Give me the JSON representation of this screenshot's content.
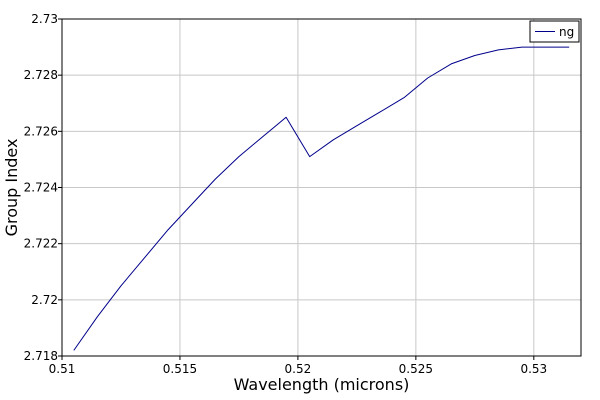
{
  "chart_data": {
    "type": "line",
    "title": "",
    "xlabel": "Wavelength (microns)",
    "ylabel": "Group Index",
    "xlim": [
      0.51,
      0.532
    ],
    "ylim": [
      2.718,
      2.73
    ],
    "xticks": [
      0.51,
      0.515,
      0.52,
      0.525,
      0.53
    ],
    "xtick_labels": [
      "0.51",
      "0.515",
      "0.52",
      "0.525",
      "0.53"
    ],
    "yticks": [
      2.718,
      2.72,
      2.722,
      2.724,
      2.726,
      2.728,
      2.73
    ],
    "ytick_labels": [
      "2.718",
      "2.72",
      "2.722",
      "2.724",
      "2.726",
      "2.728",
      "2.73"
    ],
    "grid": true,
    "legend_position": "top-right",
    "series": [
      {
        "name": "ng",
        "color": "#00008b",
        "x": [
          0.5105,
          0.5115,
          0.5125,
          0.5135,
          0.5145,
          0.5155,
          0.5165,
          0.5175,
          0.5185,
          0.5195,
          0.5205,
          0.5215,
          0.5225,
          0.5235,
          0.5245,
          0.5255,
          0.5265,
          0.5275,
          0.5285,
          0.5295,
          0.5305,
          0.5315
        ],
        "y": [
          2.7182,
          2.7194,
          2.7205,
          2.7215,
          2.7225,
          2.7234,
          2.7243,
          2.7251,
          2.7258,
          2.7265,
          2.7251,
          2.7257,
          2.7262,
          2.7267,
          2.7272,
          2.7279,
          2.7284,
          2.7287,
          2.7289,
          2.729,
          2.729,
          2.729
        ]
      }
    ]
  }
}
